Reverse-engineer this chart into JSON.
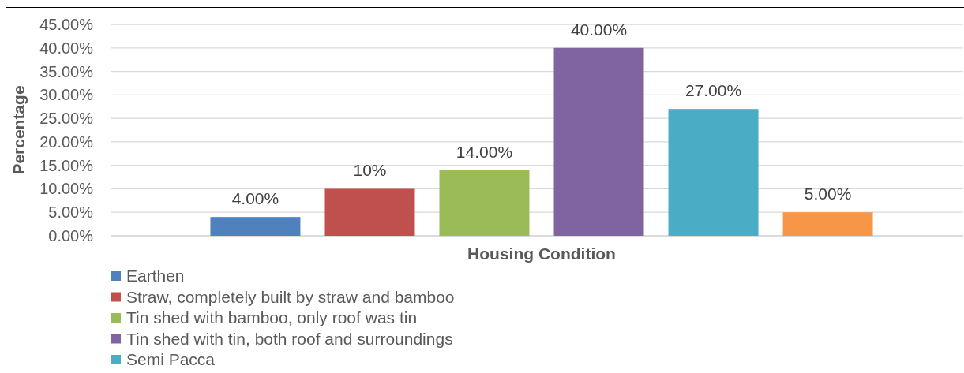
{
  "chart_data": {
    "type": "bar",
    "xlabel": "Housing Condition",
    "ylabel": "Percentage",
    "categories": [
      null
    ],
    "series": [
      {
        "name": "Earthen",
        "color": "#4f81bd",
        "values": [
          4
        ],
        "value_labels": [
          "4.00%"
        ]
      },
      {
        "name": "Straw, completely built by straw and bamboo",
        "color": "#c0504d",
        "values": [
          10
        ],
        "value_labels": [
          "10%"
        ]
      },
      {
        "name": "Tin shed with bamboo, only roof was tin",
        "color": "#9bbb59",
        "values": [
          14
        ],
        "value_labels": [
          "14.00%"
        ]
      },
      {
        "name": "Tin shed with tin, both roof and surroundings",
        "color": "#8064a2",
        "values": [
          40
        ],
        "value_labels": [
          "40.00%"
        ]
      },
      {
        "name": "Semi Pacca",
        "color": "#4bacc6",
        "values": [
          27
        ],
        "value_labels": [
          "27.00%"
        ]
      },
      {
        "color": "#f79646",
        "values": [
          5
        ],
        "value_labels": [
          "5.00%"
        ]
      }
    ],
    "ylim": [
      0,
      45
    ],
    "yticks": [
      {
        "value": 0,
        "label": "0.00%"
      },
      {
        "value": 5,
        "label": "5.00%"
      },
      {
        "value": 10,
        "label": "10.00%"
      },
      {
        "value": 15,
        "label": "15.00%"
      },
      {
        "value": 20,
        "label": "20.00%"
      },
      {
        "value": 25,
        "label": "25.00%"
      },
      {
        "value": 30,
        "label": "30.00%"
      },
      {
        "value": 35,
        "label": "35.00%"
      },
      {
        "value": 40,
        "label": "40.00%"
      },
      {
        "value": 45,
        "label": "45.00%"
      }
    ],
    "grid": "y",
    "legend": "bottom",
    "tick_labels": "y"
  }
}
